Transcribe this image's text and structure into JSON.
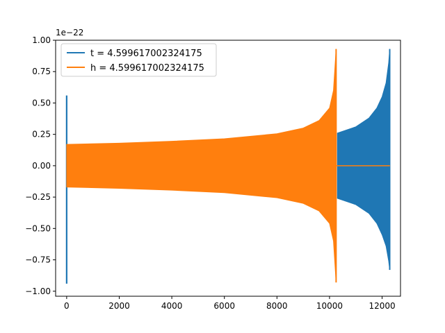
{
  "chart_data": {
    "type": "line",
    "y_offset_label": "1e−22",
    "y_scale": 1e-22,
    "xlim": [
      -420,
      12700
    ],
    "ylim": [
      -1.04,
      1.0
    ],
    "x_ticks": [
      0,
      2000,
      4000,
      6000,
      8000,
      10000,
      12000
    ],
    "x_tick_labels": [
      "0",
      "2000",
      "4000",
      "6000",
      "8000",
      "10000",
      "12000"
    ],
    "y_ticks": [
      -1.0,
      -0.75,
      -0.5,
      -0.25,
      0.0,
      0.25,
      0.5,
      0.75,
      1.0
    ],
    "y_tick_labels": [
      "−1.00",
      "−0.75",
      "−0.50",
      "−0.25",
      "0.00",
      "0.25",
      "0.50",
      "0.75",
      "1.00"
    ],
    "legend": {
      "location": "upper-left"
    },
    "series": [
      {
        "name": "t = 4.599617002324175",
        "color": "#1f77b4",
        "description": "initial spike near x=0, then chirp envelope from ~10300 to ~12300",
        "spike": {
          "x": 0,
          "ymax": 0.56,
          "ymin": -0.94
        },
        "envelope": [
          {
            "x": 10300,
            "ymax": 0.26,
            "ymin": -0.26
          },
          {
            "x": 11000,
            "ymax": 0.31,
            "ymin": -0.31
          },
          {
            "x": 11500,
            "ymax": 0.38,
            "ymin": -0.38
          },
          {
            "x": 11800,
            "ymax": 0.46,
            "ymin": -0.46
          },
          {
            "x": 12000,
            "ymax": 0.55,
            "ymin": -0.55
          },
          {
            "x": 12150,
            "ymax": 0.66,
            "ymin": -0.64
          },
          {
            "x": 12250,
            "ymax": 0.82,
            "ymin": -0.76
          },
          {
            "x": 12290,
            "ymax": 0.93,
            "ymin": -0.83
          }
        ]
      },
      {
        "name": "h = 4.599617002324175",
        "color": "#ff7f0e",
        "description": "chirp envelope from 0 to ~10300, then flat at 0 until ~12300",
        "envelope": [
          {
            "x": 0,
            "ymax": 0.17,
            "ymin": -0.17
          },
          {
            "x": 2000,
            "ymax": 0.18,
            "ymin": -0.18
          },
          {
            "x": 4000,
            "ymax": 0.195,
            "ymin": -0.195
          },
          {
            "x": 6000,
            "ymax": 0.215,
            "ymin": -0.215
          },
          {
            "x": 8000,
            "ymax": 0.255,
            "ymin": -0.255
          },
          {
            "x": 9000,
            "ymax": 0.3,
            "ymin": -0.3
          },
          {
            "x": 9600,
            "ymax": 0.36,
            "ymin": -0.36
          },
          {
            "x": 10000,
            "ymax": 0.46,
            "ymin": -0.46
          },
          {
            "x": 10150,
            "ymax": 0.6,
            "ymin": -0.6
          },
          {
            "x": 10250,
            "ymax": 0.93,
            "ymin": -0.93
          }
        ],
        "flat_tail": {
          "x_start": 10250,
          "x_end": 12300,
          "y": 0.0
        }
      }
    ]
  }
}
